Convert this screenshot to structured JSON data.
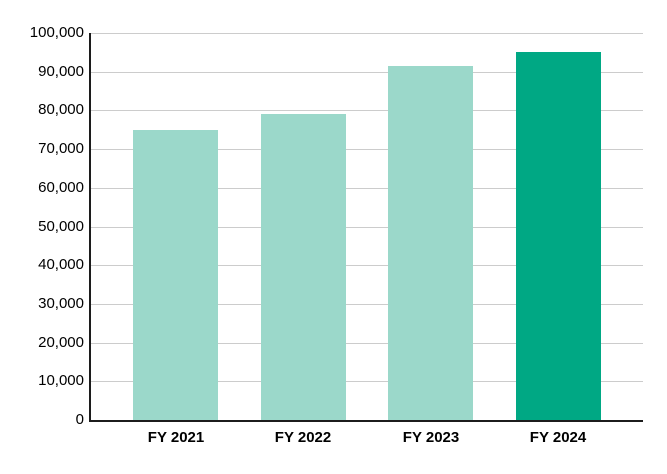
{
  "chart_data": {
    "type": "bar",
    "title": "",
    "xlabel": "",
    "ylabel": "",
    "categories": [
      "FY 2021",
      "FY 2022",
      "FY 2023",
      "FY 2024"
    ],
    "values": [
      75000,
      79000,
      91500,
      95000
    ],
    "bar_colors": [
      "#9bd8ca",
      "#9bd8ca",
      "#9bd8ca",
      "#00a884"
    ],
    "highlighted_category": "FY 2024",
    "ylim": [
      0,
      100000
    ],
    "ytick_step": 10000,
    "ytick_labels": [
      "0",
      "10,000",
      "20,000",
      "30,000",
      "40,000",
      "50,000",
      "60,000",
      "70,000",
      "80,000",
      "90,000",
      "100,000"
    ],
    "grid": "horizontal",
    "legend": "none",
    "colors": {
      "grid": "#cccccc",
      "axis": "#1c1c1c",
      "text": "#000000",
      "background": "#ffffff",
      "bar_light": "#9bd8ca",
      "bar_accent": "#00a884"
    }
  }
}
